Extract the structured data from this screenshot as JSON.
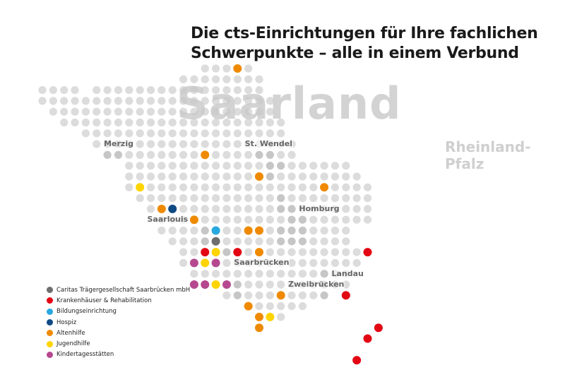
{
  "title": {
    "line1": "Die cts-Einrichtungen für Ihre fachlichen",
    "line2": "Schwerpunkte – alle in einem Verbund"
  },
  "regions": {
    "main": "Saarland",
    "neighbor_line1": "Rheinland-",
    "neighbor_line2": "Pfalz"
  },
  "cities": [
    {
      "name": "Merzig",
      "col": 6,
      "row": 7
    },
    {
      "name": "St. Wendel",
      "col": 19,
      "row": 7
    },
    {
      "name": "Saarlouis",
      "col": 10,
      "row": 14
    },
    {
      "name": "Homburg",
      "col": 24,
      "row": 13
    },
    {
      "name": "Saarbrücken",
      "col": 18,
      "row": 18
    },
    {
      "name": "Landau",
      "col": 27,
      "row": 19
    },
    {
      "name": "Zweibrücken",
      "col": 23,
      "row": 20
    }
  ],
  "colors": {
    "grid_dot": "#dcdcdc",
    "grid_dot_dark": "#c6c6c6",
    "caritas": "#6e6e6e",
    "krankenhaus": "#e30613",
    "bildung": "#28a8e0",
    "hospiz": "#0f4a84",
    "altenhilfe": "#ef8a00",
    "jugendhilfe": "#ffd400",
    "kita": "#b5488f"
  },
  "legend": [
    {
      "label": "Caritas Trägergesellschaft Saarbrücken mbH",
      "color": "#6e6e6e"
    },
    {
      "label": "Krankenhäuser & Rehabilitation",
      "color": "#e30613"
    },
    {
      "label": "Bildungseinrichtung",
      "color": "#28a8e0"
    },
    {
      "label": "Hospiz",
      "color": "#0f4a84"
    },
    {
      "label": "Altenhilfe",
      "color": "#ef8a00"
    },
    {
      "label": "Jugendhilfe",
      "color": "#ffd400"
    },
    {
      "label": "Kindertagesstätten",
      "color": "#b5488f"
    }
  ],
  "grid": {
    "rows": [
      [
        [
          15,
          19
        ]
      ],
      [
        [
          13,
          20
        ]
      ],
      [
        [
          0,
          3
        ],
        [
          5,
          20
        ]
      ],
      [
        [
          0,
          21
        ]
      ],
      [
        [
          1,
          21
        ]
      ],
      [
        [
          2,
          22
        ]
      ],
      [
        [
          4,
          22
        ]
      ],
      [
        [
          5,
          23
        ]
      ],
      [
        [
          6,
          23
        ]
      ],
      [
        [
          8,
          28
        ]
      ],
      [
        [
          8,
          29
        ]
      ],
      [
        [
          8,
          30
        ]
      ],
      [
        [
          9,
          30
        ]
      ],
      [
        [
          10,
          30
        ]
      ],
      [
        [
          11,
          30
        ]
      ],
      [
        [
          11,
          28
        ]
      ],
      [
        [
          12,
          28
        ]
      ],
      [
        [
          13,
          30
        ]
      ],
      [
        [
          13,
          29
        ]
      ],
      [
        [
          14,
          28
        ]
      ],
      [
        [
          15,
          28
        ]
      ],
      [
        [
          17,
          26
        ]
      ],
      [
        [
          19,
          24
        ]
      ],
      [
        [
          20,
          22
        ]
      ],
      [
        [
          20,
          20
        ]
      ]
    ],
    "dark_cells": [
      [
        7,
        6
      ],
      [
        7,
        7
      ],
      [
        8,
        6
      ],
      [
        8,
        7
      ],
      [
        9,
        6
      ],
      [
        8,
        20
      ],
      [
        8,
        21
      ],
      [
        9,
        21
      ],
      [
        9,
        22
      ],
      [
        10,
        21
      ],
      [
        12,
        22
      ],
      [
        13,
        22
      ],
      [
        13,
        23
      ],
      [
        14,
        23
      ],
      [
        14,
        24
      ],
      [
        15,
        22
      ],
      [
        15,
        23
      ],
      [
        15,
        24
      ],
      [
        16,
        22
      ],
      [
        16,
        23
      ],
      [
        16,
        24
      ],
      [
        15,
        15
      ],
      [
        15,
        16
      ],
      [
        16,
        15
      ],
      [
        16,
        16
      ],
      [
        17,
        15
      ],
      [
        17,
        16
      ],
      [
        17,
        17
      ],
      [
        18,
        16
      ],
      [
        14,
        9
      ],
      [
        15,
        9
      ],
      [
        15,
        10
      ],
      [
        19,
        26
      ],
      [
        20,
        26
      ],
      [
        20,
        27
      ],
      [
        21,
        26
      ],
      [
        20,
        18
      ],
      [
        21,
        18
      ]
    ]
  },
  "facilities": [
    {
      "type": "altenhilfe",
      "col": 18,
      "row": 0
    },
    {
      "type": "altenhilfe",
      "col": 15,
      "row": 8
    },
    {
      "type": "altenhilfe",
      "col": 20,
      "row": 10
    },
    {
      "type": "altenhilfe",
      "col": 26,
      "row": 11
    },
    {
      "type": "jugendhilfe",
      "col": 9,
      "row": 11
    },
    {
      "type": "altenhilfe",
      "col": 11,
      "row": 13
    },
    {
      "type": "hospiz",
      "col": 12,
      "row": 13
    },
    {
      "type": "altenhilfe",
      "col": 14,
      "row": 14
    },
    {
      "type": "bildung",
      "col": 16,
      "row": 15
    },
    {
      "type": "altenhilfe",
      "col": 19,
      "row": 15
    },
    {
      "type": "altenhilfe",
      "col": 20,
      "row": 15
    },
    {
      "type": "caritas",
      "col": 16,
      "row": 16
    },
    {
      "type": "krankenhaus",
      "col": 15,
      "row": 17
    },
    {
      "type": "jugendhilfe",
      "col": 16,
      "row": 17
    },
    {
      "type": "krankenhaus",
      "col": 18,
      "row": 17
    },
    {
      "type": "altenhilfe",
      "col": 20,
      "row": 17
    },
    {
      "type": "kita",
      "col": 14,
      "row": 18
    },
    {
      "type": "jugendhilfe",
      "col": 15,
      "row": 18
    },
    {
      "type": "kita",
      "col": 16,
      "row": 18
    },
    {
      "type": "kita",
      "col": 14,
      "row": 20
    },
    {
      "type": "kita",
      "col": 15,
      "row": 20
    },
    {
      "type": "jugendhilfe",
      "col": 16,
      "row": 20
    },
    {
      "type": "kita",
      "col": 17,
      "row": 20
    },
    {
      "type": "altenhilfe",
      "col": 22,
      "row": 21
    },
    {
      "type": "krankenhaus",
      "col": 28,
      "row": 21
    },
    {
      "type": "altenhilfe",
      "col": 19,
      "row": 22
    },
    {
      "type": "altenhilfe",
      "col": 20,
      "row": 23
    },
    {
      "type": "jugendhilfe",
      "col": 21,
      "row": 23
    },
    {
      "type": "altenhilfe",
      "col": 20,
      "row": 24
    },
    {
      "type": "krankenhaus",
      "col": 30,
      "row": 17
    },
    {
      "type": "krankenhaus",
      "col": 30,
      "row": 25
    },
    {
      "type": "krankenhaus",
      "col": 31,
      "row": 24
    },
    {
      "type": "krankenhaus",
      "col": 29,
      "row": 27
    }
  ]
}
